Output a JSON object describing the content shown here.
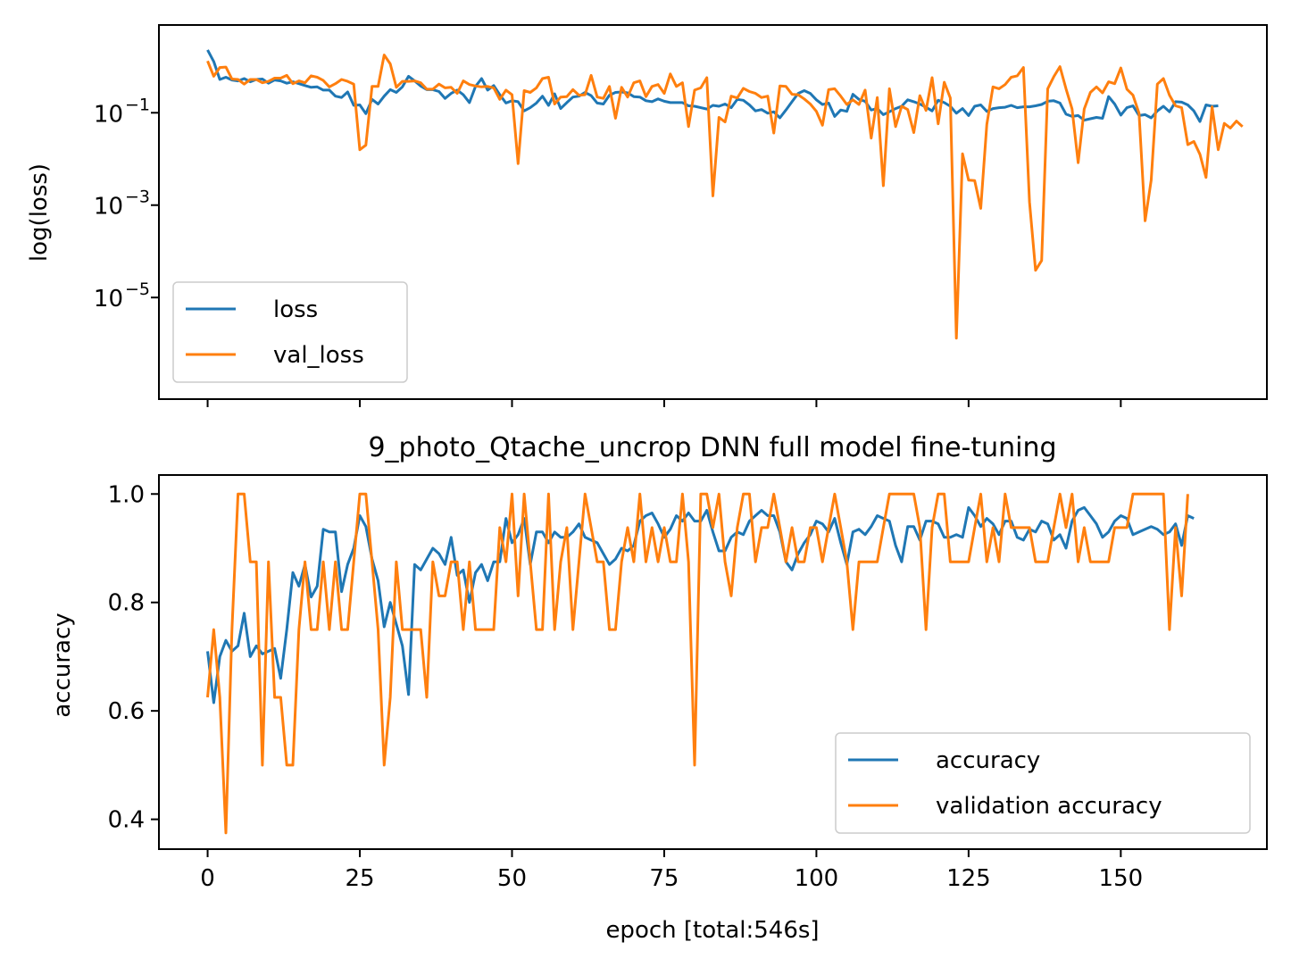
{
  "colors": {
    "series1": "#1f77b4",
    "series2": "#ff7f0e",
    "axes": "#000000",
    "legend_border": "#cccccc"
  },
  "chart_data": [
    {
      "type": "line",
      "title": "",
      "xlabel": "",
      "ylabel": "log(loss)",
      "yscale": "log",
      "xlim": [
        -8,
        174
      ],
      "ylim_log10": [
        -7.2,
        0.9
      ],
      "ytick_exponents": [
        -1,
        -3,
        -5
      ],
      "xtick_values": [
        0,
        25,
        50,
        75,
        100,
        125,
        150
      ],
      "xticklabels_shown": false,
      "legend_position": "lower-left",
      "series": [
        {
          "name": "loss",
          "color": "#1f77b4",
          "log10_values": [
            0.36,
            0.11,
            -0.28,
            -0.23,
            -0.29,
            -0.31,
            -0.26,
            -0.33,
            -0.28,
            -0.27,
            -0.36,
            -0.29,
            -0.31,
            -0.36,
            -0.33,
            -0.37,
            -0.41,
            -0.45,
            -0.44,
            -0.51,
            -0.51,
            -0.64,
            -0.67,
            -0.55,
            -0.84,
            -0.83,
            -1.02,
            -0.71,
            -0.81,
            -0.64,
            -0.5,
            -0.56,
            -0.44,
            -0.21,
            -0.31,
            -0.42,
            -0.5,
            -0.5,
            -0.54,
            -0.69,
            -0.58,
            -0.51,
            -0.61,
            -0.78,
            -0.43,
            -0.26,
            -0.51,
            -0.41,
            -0.61,
            -0.79,
            -0.74,
            -0.76,
            -0.96,
            -0.89,
            -0.79,
            -0.64,
            -0.84,
            -0.59,
            -0.91,
            -0.78,
            -0.66,
            -0.64,
            -0.56,
            -0.63,
            -0.79,
            -0.81,
            -0.62,
            -0.56,
            -0.55,
            -0.57,
            -0.65,
            -0.66,
            -0.74,
            -0.76,
            -0.7,
            -0.75,
            -0.78,
            -0.78,
            -0.78,
            -0.85,
            -0.86,
            -0.89,
            -0.92,
            -0.84,
            -0.86,
            -0.81,
            -0.89,
            -0.71,
            -0.73,
            -0.83,
            -0.96,
            -0.93,
            -1.01,
            -0.98,
            -1.11,
            -0.94,
            -0.76,
            -0.58,
            -0.52,
            -0.58,
            -0.72,
            -0.82,
            -0.79,
            -1.08,
            -0.94,
            -0.97,
            -0.6,
            -0.71,
            -0.75,
            -0.94,
            -0.91,
            -1.04,
            -0.98,
            -0.91,
            -0.86,
            -0.72,
            -0.76,
            -0.81,
            -0.88,
            -0.96,
            -0.73,
            -0.78,
            -0.86,
            -1.01,
            -0.91,
            -1.06,
            -0.86,
            -0.83,
            -0.97,
            -0.91,
            -0.89,
            -0.88,
            -0.84,
            -0.89,
            -0.87,
            -0.87,
            -0.85,
            -0.82,
            -0.75,
            -0.74,
            -0.79,
            -1.03,
            -1.08,
            -1.06,
            -1.16,
            -1.13,
            -1.1,
            -1.12,
            -0.65,
            -0.81,
            -1.05,
            -0.89,
            -0.85,
            -1.06,
            -1.04,
            -1.11,
            -0.96,
            -0.86,
            -0.98,
            -0.76,
            -0.77,
            -0.83,
            -0.96,
            -1.19,
            -0.83,
            -0.86,
            -0.85
          ]
        },
        {
          "name": "val_loss",
          "color": "#ff7f0e",
          "log10_values": [
            0.12,
            -0.21,
            -0.02,
            -0.01,
            -0.27,
            -0.28,
            -0.38,
            -0.28,
            -0.28,
            -0.35,
            -0.32,
            -0.25,
            -0.25,
            -0.19,
            -0.37,
            -0.31,
            -0.35,
            -0.2,
            -0.23,
            -0.3,
            -0.44,
            -0.37,
            -0.28,
            -0.32,
            -0.38,
            -1.8,
            -1.7,
            -0.43,
            -0.43,
            0.25,
            0.06,
            -0.45,
            -0.32,
            -0.32,
            -0.31,
            -0.35,
            -0.49,
            -0.49,
            -0.38,
            -0.46,
            -0.45,
            -0.58,
            -0.31,
            -0.39,
            -0.42,
            -0.44,
            -0.43,
            -0.46,
            -0.71,
            -0.51,
            -0.61,
            -2.1,
            -0.52,
            -0.56,
            -0.46,
            -0.26,
            -0.23,
            -0.81,
            -0.66,
            -0.65,
            -0.5,
            -0.62,
            -0.61,
            -0.19,
            -0.66,
            -0.69,
            -0.43,
            -1.12,
            -0.45,
            -0.66,
            -0.35,
            -0.31,
            -0.65,
            -0.43,
            -0.39,
            -0.58,
            -0.16,
            -0.43,
            -0.35,
            -1.3,
            -0.51,
            -0.46,
            -0.24,
            -2.8,
            -1.1,
            -1.2,
            -0.64,
            -0.68,
            -0.47,
            -0.54,
            -0.58,
            -0.67,
            -0.64,
            -1.44,
            -0.42,
            -0.43,
            -0.6,
            -0.61,
            -0.7,
            -0.81,
            -0.97,
            -1.27,
            -0.5,
            -0.48,
            -0.64,
            -0.82,
            -0.72,
            -0.82,
            -0.51,
            -1.55,
            -0.67,
            -2.58,
            -0.48,
            -1.3,
            -0.86,
            -0.93,
            -1.43,
            -0.63,
            -0.95,
            -0.24,
            -1.24,
            -0.34,
            -0.68,
            -5.88,
            -1.89,
            -2.46,
            -2.47,
            -3.07,
            -1.25,
            -0.44,
            -0.48,
            -0.39,
            -0.23,
            -0.2,
            -0.02,
            -2.93,
            -4.41,
            -4.2,
            -0.48,
            -0.22,
            0.0,
            -0.48,
            -0.92,
            -2.08,
            -0.92,
            -0.56,
            -0.44,
            -0.57,
            -0.33,
            -0.37,
            -0.03,
            -0.49,
            -0.62,
            -1.01,
            -3.34,
            -2.46,
            -0.38,
            -0.26,
            -0.62,
            -0.85,
            -0.89,
            -1.69,
            -1.62,
            -1.9,
            -2.4,
            -0.87,
            -1.8,
            -1.23,
            -1.33,
            -1.18,
            -1.3
          ]
        }
      ]
    },
    {
      "type": "line",
      "title": "9_photo_Qtache_uncrop DNN full model fine-tuning",
      "xlabel": "epoch [total:546s]",
      "ylabel": "accuracy",
      "xlim": [
        -8,
        174
      ],
      "ylim": [
        0.345,
        1.035
      ],
      "ytick_values": [
        0.4,
        0.6,
        0.8,
        1.0
      ],
      "ytick_labels": [
        "0.4",
        "0.6",
        "0.8",
        "1.0"
      ],
      "xtick_values": [
        0,
        25,
        50,
        75,
        100,
        125,
        150
      ],
      "xtick_labels": [
        "0",
        "25",
        "50",
        "75",
        "100",
        "125",
        "150"
      ],
      "legend_position": "lower-right",
      "series": [
        {
          "name": "accuracy",
          "color": "#1f77b4",
          "values": [
            0.71,
            0.615,
            0.7,
            0.73,
            0.71,
            0.72,
            0.78,
            0.7,
            0.72,
            0.705,
            0.71,
            0.715,
            0.66,
            0.75,
            0.855,
            0.83,
            0.87,
            0.81,
            0.83,
            0.935,
            0.93,
            0.93,
            0.82,
            0.87,
            0.9,
            0.96,
            0.94,
            0.88,
            0.84,
            0.755,
            0.8,
            0.76,
            0.72,
            0.63,
            0.87,
            0.86,
            0.88,
            0.9,
            0.89,
            0.87,
            0.92,
            0.85,
            0.86,
            0.8,
            0.855,
            0.87,
            0.84,
            0.875,
            0.875,
            0.955,
            0.91,
            0.925,
            0.955,
            0.87,
            0.93,
            0.93,
            0.91,
            0.93,
            0.92,
            0.92,
            0.93,
            0.945,
            0.92,
            0.915,
            0.91,
            0.89,
            0.87,
            0.88,
            0.9,
            0.895,
            0.905,
            0.95,
            0.96,
            0.965,
            0.945,
            0.92,
            0.935,
            0.96,
            0.95,
            0.965,
            0.95,
            0.95,
            0.97,
            0.93,
            0.895,
            0.895,
            0.92,
            0.93,
            0.925,
            0.95,
            0.96,
            0.97,
            0.96,
            0.96,
            0.93,
            0.875,
            0.86,
            0.89,
            0.91,
            0.925,
            0.95,
            0.945,
            0.93,
            0.955,
            0.91,
            0.87,
            0.93,
            0.935,
            0.925,
            0.94,
            0.96,
            0.955,
            0.95,
            0.905,
            0.875,
            0.94,
            0.94,
            0.915,
            0.95,
            0.95,
            0.945,
            0.92,
            0.92,
            0.925,
            0.92,
            0.975,
            0.96,
            0.94,
            0.955,
            0.945,
            0.925,
            0.95,
            0.95,
            0.92,
            0.915,
            0.935,
            0.93,
            0.95,
            0.945,
            0.915,
            0.925,
            0.9,
            0.95,
            0.97,
            0.975,
            0.96,
            0.945,
            0.92,
            0.93,
            0.95,
            0.96,
            0.955,
            0.925,
            0.93,
            0.935,
            0.94,
            0.935,
            0.925,
            0.93,
            0.945,
            0.905,
            0.96,
            0.955
          ]
        },
        {
          "name": "validation accuracy",
          "color": "#ff7f0e",
          "values": [
            0.625,
            0.75,
            0.625,
            0.375,
            0.75,
            1.0,
            1.0,
            0.875,
            0.875,
            0.5,
            0.875,
            0.625,
            0.625,
            0.5,
            0.5,
            0.75,
            0.875,
            0.75,
            0.75,
            0.875,
            0.75,
            0.875,
            0.75,
            0.75,
            0.875,
            1.0,
            1.0,
            0.875,
            0.75,
            0.5,
            0.625,
            0.875,
            0.75,
            0.75,
            0.75,
            0.75,
            0.625,
            0.875,
            0.812,
            0.812,
            0.875,
            0.875,
            0.75,
            0.875,
            0.75,
            0.75,
            0.75,
            0.75,
            0.938,
            0.875,
            1.0,
            0.812,
            1.0,
            0.875,
            0.75,
            0.75,
            1.0,
            0.75,
            0.875,
            0.938,
            0.75,
            0.875,
            1.0,
            0.938,
            0.875,
            0.875,
            0.75,
            0.75,
            0.875,
            0.938,
            0.875,
            1.0,
            0.875,
            0.938,
            0.875,
            0.938,
            0.875,
            0.875,
            1.0,
            0.875,
            0.5,
            1.0,
            1.0,
            0.938,
            1.0,
            0.875,
            0.812,
            0.938,
            1.0,
            1.0,
            0.875,
            0.938,
            0.938,
            1.0,
            0.938,
            0.875,
            0.938,
            0.875,
            0.875,
            0.938,
            0.938,
            0.875,
            0.938,
            1.0,
            0.938,
            0.875,
            0.75,
            0.875,
            0.875,
            0.875,
            0.875,
            0.938,
            1.0,
            1.0,
            1.0,
            1.0,
            1.0,
            0.938,
            0.75,
            0.938,
            1.0,
            1.0,
            0.875,
            0.875,
            0.875,
            0.875,
            0.938,
            1.0,
            0.875,
            0.938,
            0.875,
            1.0,
            0.938,
            0.938,
            0.938,
            0.938,
            0.875,
            0.875,
            0.875,
            0.938,
            1.0,
            0.938,
            1.0,
            0.875,
            0.938,
            0.875,
            0.875,
            0.875,
            0.875,
            0.938,
            0.938,
            0.938,
            1.0,
            1.0,
            1.0,
            1.0,
            1.0,
            1.0,
            0.75,
            0.938,
            0.812,
            1.0
          ]
        }
      ]
    }
  ]
}
